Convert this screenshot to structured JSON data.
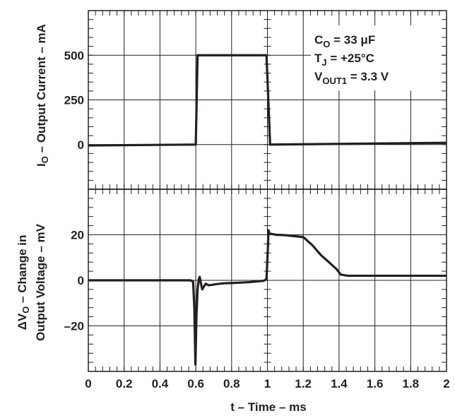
{
  "chart_data": {
    "type": "line",
    "x": {
      "label": "t – Time – ms",
      "range": [
        0,
        2
      ],
      "ticks": [
        0,
        0.2,
        0.4,
        0.6,
        0.8,
        1,
        1.2,
        1.4,
        1.6,
        1.8,
        2
      ],
      "tick_labels": [
        "0",
        "0.2",
        "0.4",
        "0.6",
        "0.8",
        "1",
        "1.2",
        "1.4",
        "1.6",
        "1.8",
        "2"
      ]
    },
    "panels": [
      {
        "ylabel_prefix": "I",
        "ylabel_sub": "O",
        "ylabel_rest": " – Output Current – mA",
        "ylim": [
          -250,
          750
        ],
        "ticks": [
          0,
          250,
          500
        ],
        "tick_labels": [
          "0",
          "250",
          "500"
        ],
        "series": [
          {
            "points": [
              [
                0,
                -5
              ],
              [
                0.6,
                0
              ],
              [
                0.61,
                500
              ],
              [
                0.995,
                500
              ],
              [
                1.015,
                0
              ],
              [
                2,
                10
              ]
            ]
          }
        ]
      },
      {
        "ylabel_line1_prefix": "ΔV",
        "ylabel_line1_sub": "O",
        "ylabel_line1_rest": " – Change in",
        "ylabel_line2": "Output Voltage – mV",
        "ylim": [
          -40,
          40
        ],
        "ticks": [
          -20,
          0,
          20
        ],
        "tick_labels": [
          "–20",
          "0",
          "20"
        ],
        "series": [
          {
            "points": [
              [
                0,
                0
              ],
              [
                0.57,
                0
              ],
              [
                0.585,
                -0.5
              ],
              [
                0.592,
                -12
              ],
              [
                0.598,
                -37
              ],
              [
                0.604,
                -15
              ],
              [
                0.61,
                -4
              ],
              [
                0.617,
                0.5
              ],
              [
                0.622,
                1.5
              ],
              [
                0.628,
                -1
              ],
              [
                0.636,
                -4
              ],
              [
                0.645,
                -2.8
              ],
              [
                0.655,
                -1.5
              ],
              [
                0.672,
                -2.2
              ],
              [
                0.69,
                -2
              ],
              [
                0.72,
                -1.6
              ],
              [
                0.76,
                -1.3
              ],
              [
                0.8,
                -1.2
              ],
              [
                0.9,
                -0.8
              ],
              [
                0.98,
                -0.2
              ],
              [
                0.995,
                0.5
              ],
              [
                1.003,
                15
              ],
              [
                1.006,
                22
              ],
              [
                1.012,
                20.5
              ],
              [
                1.05,
                20
              ],
              [
                1.1,
                19.8
              ],
              [
                1.2,
                19
              ],
              [
                1.25,
                15.5
              ],
              [
                1.3,
                11
              ],
              [
                1.35,
                7.5
              ],
              [
                1.385,
                5
              ],
              [
                1.41,
                2.5
              ],
              [
                1.45,
                2
              ],
              [
                1.6,
                2
              ],
              [
                1.8,
                2
              ],
              [
                2,
                2
              ]
            ]
          }
        ]
      }
    ],
    "annotation": {
      "line1_prefix": "C",
      "line1_sub": "O",
      "line1_rest": " = 33 μF",
      "line2_prefix": "T",
      "line2_sub": "J",
      "line2_rest": " = +25°C",
      "line3_prefix": "V",
      "line3_sub": "OUT1",
      "line3_rest": " = 3.3 V"
    },
    "grid": true,
    "legend": "none"
  }
}
